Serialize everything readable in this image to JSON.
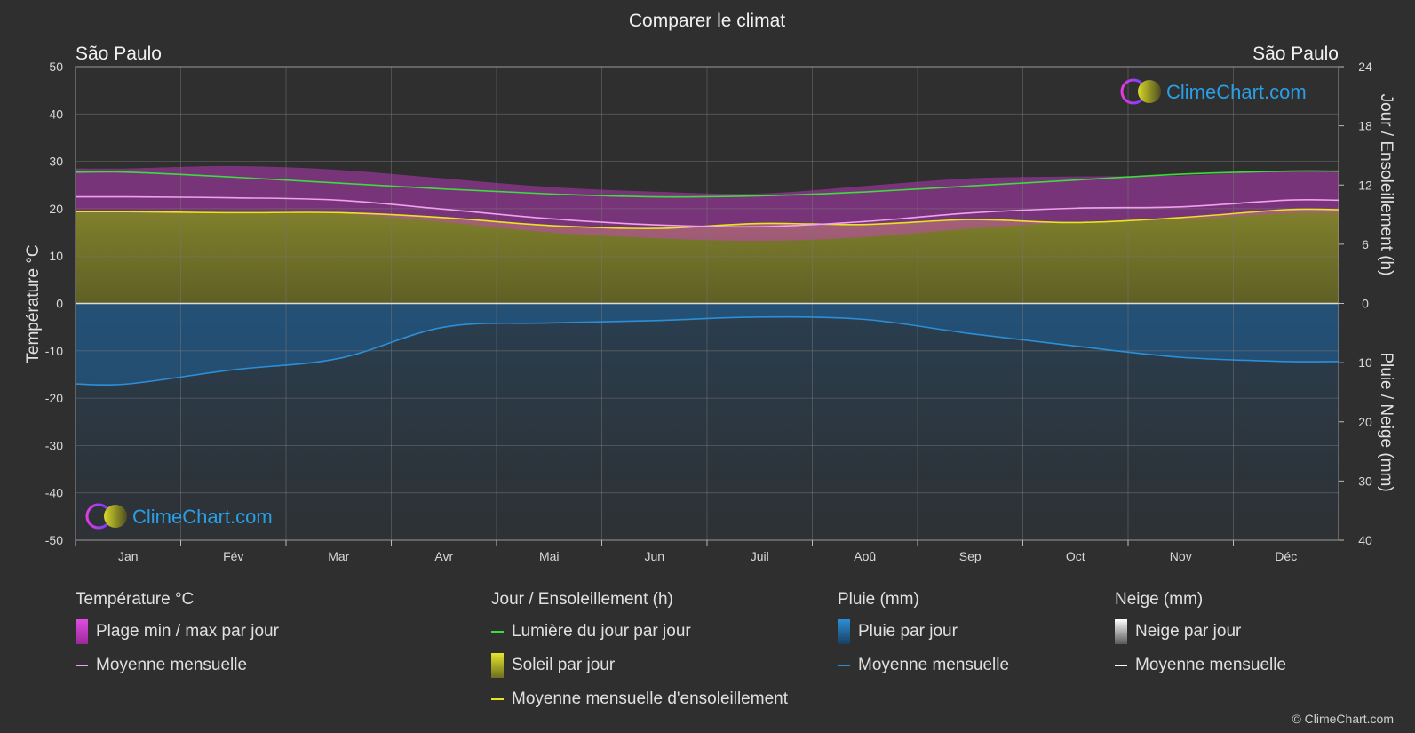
{
  "header": {
    "title": "Comparer le climat",
    "city_left": "São Paulo",
    "city_right": "São Paulo",
    "watermark": "ClimeChart.com",
    "copyright": "© ClimeChart.com"
  },
  "chart_data": {
    "type": "area",
    "title": "Comparer le climat",
    "months": [
      "Jan",
      "Fév",
      "Mar",
      "Avr",
      "Mai",
      "Jun",
      "Juil",
      "Aoû",
      "Sep",
      "Oct",
      "Nov",
      "Déc"
    ],
    "axes": {
      "y_left": {
        "label": "Température °C",
        "range": [
          -50,
          50
        ],
        "ticks": [
          50,
          40,
          30,
          20,
          10,
          0,
          -10,
          -20,
          -30,
          -40,
          -50
        ]
      },
      "y_right_top": {
        "label": "Jour / Ensoleillement (h)",
        "range": [
          0,
          24
        ],
        "ticks": [
          24,
          18,
          12,
          6,
          0
        ]
      },
      "y_right_bottom": {
        "label": "Pluie / Neige (mm)",
        "range": [
          0,
          40
        ],
        "ticks": [
          0,
          10,
          20,
          30,
          40
        ]
      }
    },
    "grid": true,
    "colors": {
      "daylight": "#3ddc3d",
      "sunshine_fill": "#8c8c28",
      "sunshine_line": "#e6e61e",
      "temp_range": "#d23cd2",
      "temp_mean": "#f0a0f0",
      "rain_fill": "#1f5a8c",
      "rain_line": "#2a8fd8",
      "snow_line": "#ffffff"
    },
    "series": [
      {
        "name": "Lumière du jour par jour",
        "unit": "h",
        "values": [
          13.3,
          12.8,
          12.2,
          11.6,
          11.1,
          10.8,
          10.9,
          11.3,
          11.9,
          12.5,
          13.1,
          13.4
        ]
      },
      {
        "name": "Moyenne mensuelle d'ensoleillement",
        "unit": "h",
        "values": [
          9.3,
          9.2,
          9.2,
          8.7,
          7.9,
          7.6,
          8.1,
          8.0,
          8.5,
          8.2,
          8.7,
          9.5
        ]
      },
      {
        "name": "Moyenne mensuelle",
        "kind": "temperature_mean",
        "unit": "°C",
        "values": [
          22.5,
          22.3,
          21.8,
          19.9,
          17.9,
          16.6,
          16.2,
          17.3,
          19.1,
          20.1,
          20.4,
          21.8
        ]
      },
      {
        "name": "Plage min / max par jour",
        "kind": "temperature_range",
        "unit": "°C",
        "min": [
          19.5,
          19.6,
          19.0,
          17.2,
          15.0,
          13.8,
          13.2,
          14.0,
          15.8,
          17.2,
          17.8,
          19.0
        ],
        "max": [
          28.5,
          29.0,
          28.2,
          26.4,
          24.6,
          23.6,
          23.2,
          24.8,
          26.4,
          26.8,
          27.0,
          28.0
        ]
      },
      {
        "name": "Moyenne mensuelle",
        "kind": "rain_mean",
        "unit": "mm",
        "values": [
          13.6,
          11.2,
          9.3,
          4.0,
          3.3,
          2.9,
          2.3,
          2.7,
          5.1,
          7.2,
          9.1,
          9.8
        ]
      }
    ]
  },
  "legend": {
    "temperature": {
      "title": "Température °C",
      "range": "Plage min / max par jour",
      "mean": "Moyenne mensuelle"
    },
    "sun": {
      "title": "Jour / Ensoleillement (h)",
      "daylight": "Lumière du jour par jour",
      "sunshine": "Soleil par jour",
      "sunshine_mean": "Moyenne mensuelle d'ensoleillement"
    },
    "rain": {
      "title": "Pluie (mm)",
      "daily": "Pluie par jour",
      "mean": "Moyenne mensuelle"
    },
    "snow": {
      "title": "Neige (mm)",
      "daily": "Neige par jour",
      "mean": "Moyenne mensuelle"
    }
  }
}
